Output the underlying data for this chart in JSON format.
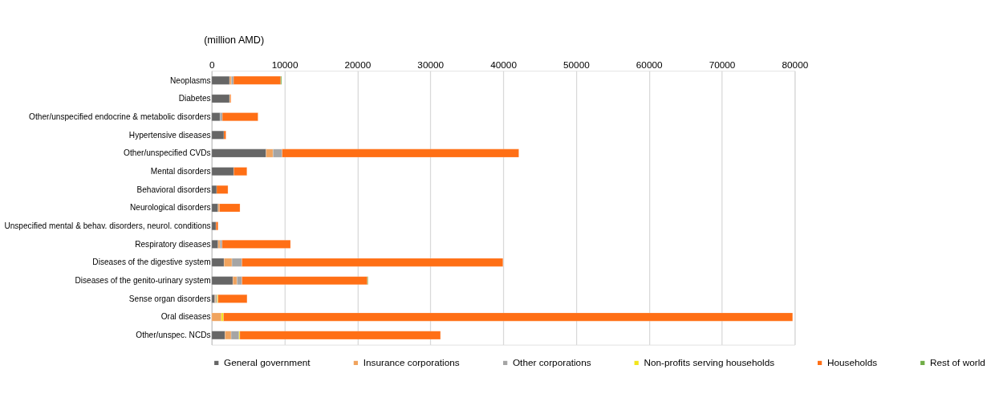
{
  "chart_data": {
    "type": "bar",
    "orientation": "horizontal",
    "stacked": true,
    "xlabel": "(million AMD)",
    "categories": [
      "Neoplasms",
      "Diabetes",
      "Other/unspecified endocrine & metabolic disorders",
      "Hypertensive diseases",
      "Other/unspecified CVDs",
      "Mental disorders",
      "Behavioral disorders",
      "Neurological disorders",
      "Unspecified mental & behav. disorders, neurol. conditions",
      "Respiratory diseases",
      "Diseases of the digestive system",
      "Diseases of the genito-urinary system",
      "Sense organ disorders",
      "Oral diseases",
      "Other/unspec. NCDs"
    ],
    "series": [
      {
        "name": "General government",
        "color": "#666666",
        "values": [
          2450,
          2450,
          1150,
          1670,
          7460,
          3030,
          680,
          870,
          590,
          870,
          1700,
          2910,
          430,
          null,
          1830
        ]
      },
      {
        "name": "Insurance corporations",
        "color": "#f0a35e",
        "values": [
          250,
          120,
          null,
          null,
          960,
          null,
          null,
          190,
          null,
          280,
          1080,
          560,
          120,
          1330,
          840
        ]
      },
      {
        "name": "Other corporations",
        "color": "#a5a5a5",
        "values": [
          300,
          null,
          310,
          null,
          1240,
          null,
          null,
          null,
          null,
          280,
          1360,
          680,
          190,
          null,
          1080
        ]
      },
      {
        "name": "Non-profits serving households",
        "color": "#f2e51c",
        "values": [
          null,
          null,
          null,
          null,
          null,
          null,
          null,
          null,
          null,
          null,
          null,
          null,
          120,
          280,
          120
        ]
      },
      {
        "name": "Households",
        "color": "#ff6f15",
        "values": [
          6470,
          90,
          4890,
          280,
          32480,
          1800,
          1550,
          2820,
          280,
          9380,
          35820,
          17210,
          3990,
          78100,
          27520
        ]
      },
      {
        "name": "Rest of world",
        "color": "#70ad47",
        "values": [
          120,
          null,
          null,
          null,
          null,
          null,
          null,
          null,
          null,
          null,
          null,
          90,
          null,
          null,
          null
        ]
      }
    ],
    "xlim": [
      0,
      80000
    ],
    "xticks": [
      0,
      10000,
      20000,
      30000,
      40000,
      50000,
      60000,
      70000,
      80000
    ],
    "grid": "x",
    "legend": "bottom"
  }
}
